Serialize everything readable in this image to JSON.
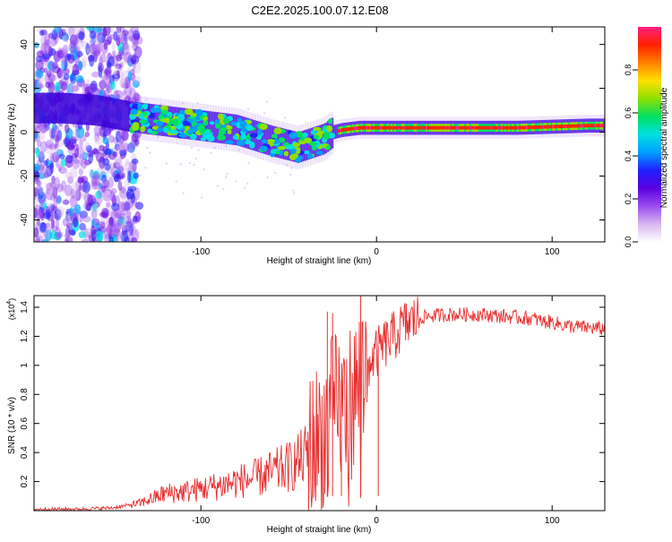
{
  "title": "C2E2.2025.100.07.12.E08",
  "chart_data": [
    {
      "type": "heatmap",
      "xlabel": "Height of straight line (km)",
      "ylabel": "Frequency (Hz)",
      "xlim": [
        -195,
        130
      ],
      "ylim": [
        -50,
        48
      ],
      "xticks": [
        -100,
        0,
        100
      ],
      "xtick_labels": [
        "-100",
        "0",
        "100"
      ],
      "yticks": [
        -40,
        -20,
        0,
        20,
        40
      ],
      "ytick_labels": [
        "-40",
        "-20",
        "0",
        "20",
        "40"
      ],
      "colorbar": {
        "label": "Normalized spectral amplitude",
        "range": [
          0,
          1
        ],
        "ticks": [
          0,
          0.2,
          0.4,
          0.6,
          0.8
        ],
        "tick_labels": [
          "0.0",
          "0.2",
          "0.4",
          "0.6",
          "0.8"
        ],
        "colors": [
          "#ffffff",
          "#d7b6f0",
          "#9a4cf0",
          "#5a00e0",
          "#2020ff",
          "#00a0ff",
          "#00e0e0",
          "#00e060",
          "#90e000",
          "#ffe000",
          "#ff8000",
          "#ff2000",
          "#ff2080"
        ]
      },
      "ridge": {
        "x": [
          -195,
          -180,
          -160,
          -140,
          -120,
          -100,
          -80,
          -60,
          -45,
          -30,
          -25,
          -20,
          -10,
          0,
          20,
          50,
          80,
          100,
          120,
          130
        ],
        "frequency": [
          11,
          11,
          10,
          7,
          5,
          3,
          1,
          -4,
          -7,
          -3,
          0,
          1,
          2,
          2,
          2,
          2,
          2,
          2.5,
          3,
          3
        ]
      },
      "noise_region_x": [
        -195,
        -135
      ],
      "grid": false
    },
    {
      "type": "line",
      "xlabel": "Height of straight line (km)",
      "ylabel": "SNR (10 * v/v)",
      "y_multiplier_label": "(x10",
      "y_multiplier_exp": "4",
      "xlim": [
        -195,
        130
      ],
      "ylim": [
        0,
        1.48
      ],
      "xticks": [
        -100,
        0,
        100
      ],
      "xtick_labels": [
        "-100",
        "0",
        "100"
      ],
      "yticks": [
        0.2,
        0.4,
        0.6,
        0.8,
        1.0,
        1.2,
        1.4
      ],
      "ytick_labels": [
        "0.2",
        "0.4",
        "0.6",
        "0.8",
        "1",
        "1.2",
        "1.4"
      ],
      "color": "#e83030",
      "x": [
        -195,
        -170,
        -150,
        -135,
        -120,
        -110,
        -100,
        -90,
        -80,
        -70,
        -60,
        -50,
        -42,
        -35,
        -30,
        -26,
        -24,
        -22,
        -20,
        -18,
        -15,
        -12,
        -10,
        -8,
        -5,
        0,
        5,
        10,
        15,
        20,
        25,
        30,
        40,
        50,
        60,
        70,
        80,
        90,
        95,
        100,
        105,
        110,
        120,
        130
      ],
      "y": [
        0.01,
        0.01,
        0.02,
        0.05,
        0.12,
        0.13,
        0.15,
        0.17,
        0.2,
        0.22,
        0.26,
        0.3,
        0.36,
        0.45,
        0.55,
        0.65,
        0.7,
        0.72,
        0.7,
        0.68,
        0.75,
        0.8,
        0.9,
        0.95,
        1.0,
        1.08,
        1.15,
        1.2,
        1.27,
        1.3,
        1.33,
        1.34,
        1.35,
        1.35,
        1.35,
        1.34,
        1.33,
        1.32,
        1.3,
        1.3,
        1.28,
        1.27,
        1.26,
        1.25
      ],
      "spikes": [
        {
          "x": -28,
          "y": 1.37
        },
        {
          "x": -25,
          "y": 1.36
        },
        {
          "x": -20,
          "y": 0.9
        },
        {
          "x": -9,
          "y": 1.48
        },
        {
          "x": 1,
          "y": 1.13
        }
      ],
      "grid": false
    }
  ]
}
